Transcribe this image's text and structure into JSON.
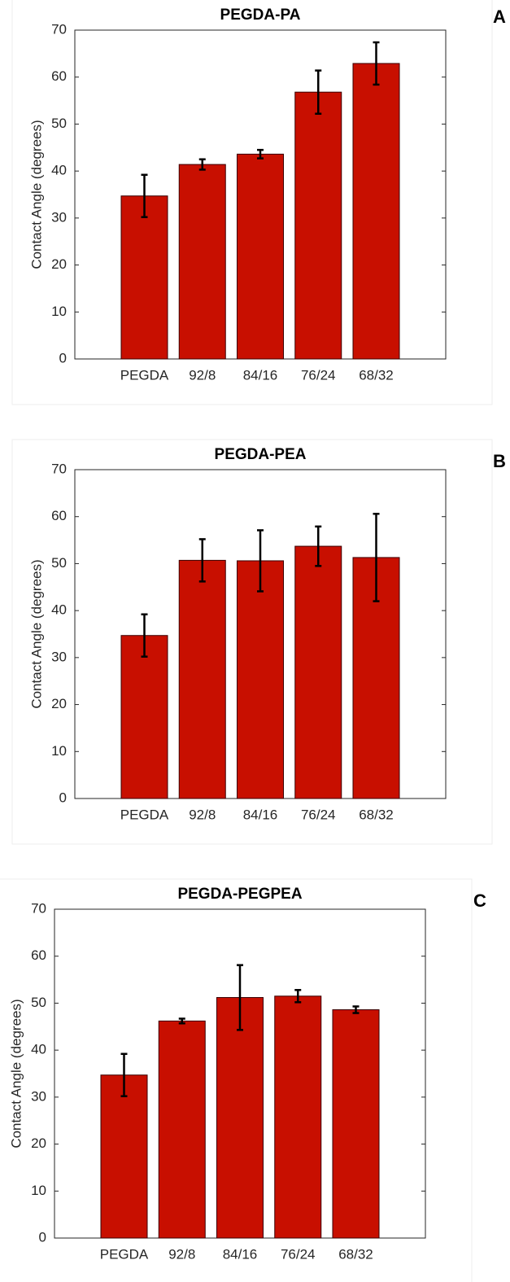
{
  "chart_data": [
    {
      "type": "bar",
      "title": "PEGDA-PA",
      "annotation": "A",
      "ylabel": "Contact Angle (degrees)",
      "categories": [
        "PEGDA",
        "92/8",
        "84/16",
        "76/24",
        "68/32"
      ],
      "values": [
        34.7,
        41.4,
        43.6,
        56.8,
        62.9
      ],
      "errors": [
        4.5,
        1.1,
        0.9,
        4.6,
        4.5
      ],
      "color": "#c80f00",
      "ylim": [
        0,
        70
      ],
      "yticks": [
        0,
        10,
        20,
        30,
        40,
        50,
        60,
        70
      ]
    },
    {
      "type": "bar",
      "title": "PEGDA-PEA",
      "annotation": "B",
      "ylabel": "Contact Angle (degrees)",
      "categories": [
        "PEGDA",
        "92/8",
        "84/16",
        "76/24",
        "68/32"
      ],
      "values": [
        34.7,
        50.7,
        50.6,
        53.7,
        51.3
      ],
      "errors": [
        4.5,
        4.5,
        6.5,
        4.2,
        9.3
      ],
      "color": "#c80f00",
      "ylim": [
        0,
        70
      ],
      "yticks": [
        0,
        10,
        20,
        30,
        40,
        50,
        60,
        70
      ]
    },
    {
      "type": "bar",
      "title": "PEGDA-PEGPEA",
      "annotation": "C",
      "ylabel": "Contact Angle (degrees)",
      "categories": [
        "PEGDA",
        "92/8",
        "84/16",
        "76/24",
        "68/32"
      ],
      "values": [
        34.7,
        46.2,
        51.2,
        51.5,
        48.6
      ],
      "errors": [
        4.5,
        0.5,
        6.9,
        1.3,
        0.7
      ],
      "color": "#c80f00",
      "ylim": [
        0,
        70
      ],
      "yticks": [
        0,
        10,
        20,
        30,
        40,
        50,
        60,
        70
      ]
    }
  ]
}
